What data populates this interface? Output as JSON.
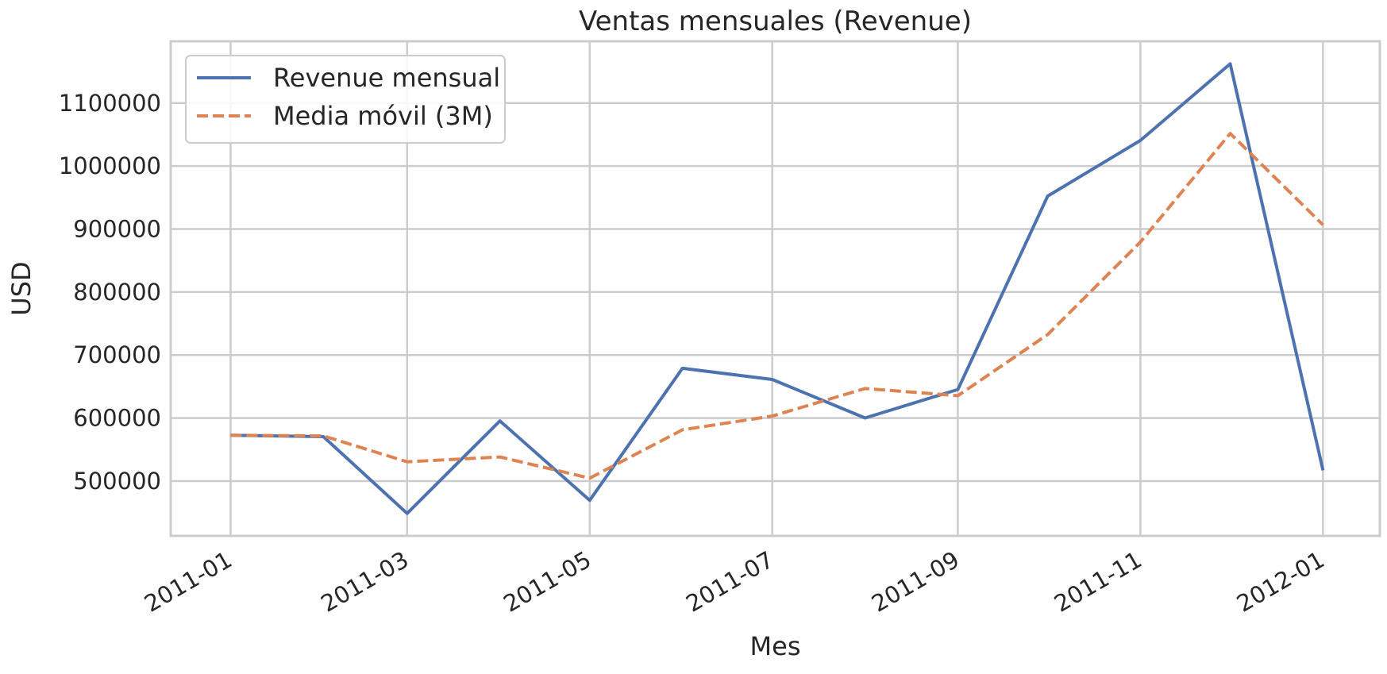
{
  "chart_data": {
    "type": "line",
    "title": "Ventas mensuales (Revenue)",
    "xlabel": "Mes",
    "ylabel": "USD",
    "x": [
      "2011-01",
      "2011-02",
      "2011-03",
      "2011-04",
      "2011-05",
      "2011-06",
      "2011-07",
      "2011-08",
      "2011-09",
      "2011-10",
      "2011-11",
      "2011-12",
      "2012-01"
    ],
    "x_ticks": [
      "2011-01",
      "2011-03",
      "2011-05",
      "2011-07",
      "2011-09",
      "2011-11",
      "2012-01"
    ],
    "y_ticks": [
      500000,
      600000,
      700000,
      800000,
      900000,
      1000000,
      1100000
    ],
    "xlim": [
      "2010-12-12",
      "2012-01-20"
    ],
    "ylim": [
      413000,
      1198000
    ],
    "grid": true,
    "legend_position": "top-left",
    "series": [
      {
        "name": "Revenue mensual",
        "color": "#4c72b0",
        "dash": "solid",
        "values": [
          572700,
          570500,
          448700,
          595500,
          469500,
          679000,
          661200,
          600100,
          645300,
          952300,
          1040600,
          1162200,
          517100
        ]
      },
      {
        "name": "Media móvil (3M)",
        "color": "#dd8452",
        "dash": "dashed",
        "values": [
          572700,
          571600,
          530600,
          538200,
          504600,
          581300,
          603200,
          646800,
          635500,
          732600,
          879400,
          1051700,
          906600
        ]
      }
    ]
  }
}
